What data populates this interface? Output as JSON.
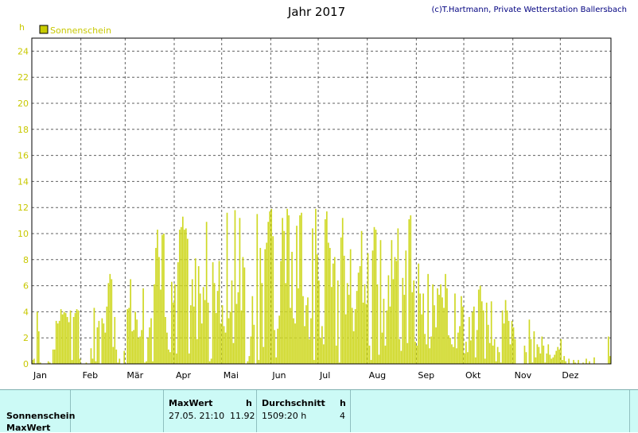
{
  "header": {
    "title": "Jahr 2017",
    "copyright": "(c)T.Hartmann, Private Wetterstation Ballersbach",
    "unit": "h"
  },
  "legend": {
    "label": "Sonnenschein",
    "color": "#c8cc00"
  },
  "chart_data": {
    "type": "bar",
    "title": "Jahr 2017",
    "ylabel": "h",
    "ylim": [
      0,
      25
    ],
    "yticks": [
      0,
      2,
      4,
      6,
      8,
      10,
      12,
      14,
      16,
      18,
      20,
      22,
      24
    ],
    "months": [
      "Jan",
      "Feb",
      "Mär",
      "Apr",
      "Mai",
      "Jun",
      "Jul",
      "Aug",
      "Sep",
      "Okt",
      "Nov",
      "Dez"
    ],
    "grid": true,
    "series": [
      {
        "name": "Sonnenschein",
        "color": "#cfd824",
        "values": [
          0.3,
          0.4,
          0,
          4.0,
          2.5,
          0.1,
          0,
          0,
          0,
          0,
          0.2,
          0.1,
          0,
          1.1,
          1.1,
          3.3,
          3.1,
          3.3,
          4.2,
          3.8,
          4.0,
          3.9,
          3.6,
          3.2,
          4.1,
          0.3,
          3.6,
          3.9,
          4.2,
          4.1,
          0.4,
          0,
          0,
          0,
          0.1,
          0,
          0,
          1.2,
          0.4,
          4.3,
          0.2,
          2.8,
          3.3,
          0,
          3.5,
          3.1,
          2.4,
          4.4,
          6.2,
          6.9,
          6.5,
          1.3,
          3.6,
          1.1,
          0.1,
          0.4,
          0,
          0,
          1.0,
          0,
          4.2,
          4.3,
          6.5,
          2.5,
          2.6,
          4.0,
          3.4,
          2.0,
          2.1,
          2.6,
          5.8,
          0.1,
          0.2,
          2.0,
          2.8,
          3.5,
          0.2,
          6.1,
          8.9,
          10.3,
          8.2,
          5.7,
          9.9,
          10.0,
          3.6,
          2.4,
          1.1,
          0.9,
          6.3,
          4.7,
          6.1,
          0.8,
          7.8,
          10.3,
          10.5,
          11.3,
          10.3,
          10.4,
          9.6,
          0.8,
          4.5,
          6.5,
          4.4,
          8.1,
          1.9,
          7.5,
          5.4,
          3.1,
          5.9,
          4.9,
          10.9,
          4.7,
          0.2,
          0.4,
          7.8,
          6.2,
          3.9,
          5.6,
          7.9,
          3.1,
          4.5,
          2.9,
          2.4,
          11.6,
          3.5,
          4.0,
          6.4,
          1.6,
          11.8,
          4.6,
          5.5,
          11.2,
          4.1,
          8.2,
          7.4,
          0,
          0.2,
          0.6,
          2.1,
          5.2,
          3.0,
          0,
          11.5,
          0.3,
          8.9,
          6.2,
          1.3,
          8.8,
          9.3,
          10.9,
          11.7,
          11.9,
          9.8,
          2.6,
          0.5,
          2.7,
          3.7,
          7.9,
          11.2,
          10.2,
          6.2,
          11.9,
          11.4,
          4.3,
          8.6,
          3.5,
          3.1,
          10.6,
          5.8,
          11.4,
          11.6,
          5.2,
          2.9,
          4.5,
          5.1,
          1.9,
          3.5,
          10.4,
          0.3,
          11.9,
          8.4,
          6.4,
          2.0,
          2.9,
          1.5,
          11.1,
          11.7,
          9.3,
          8.9,
          5.9,
          7.7,
          8.2,
          1.4,
          6.4,
          0.1,
          9.7,
          11.2,
          8.3,
          3.8,
          6.2,
          5.3,
          8.8,
          4.3,
          2.5,
          4.2,
          5.6,
          7.0,
          7.5,
          10.2,
          4.7,
          6.1,
          4.6,
          8.5,
          1.4,
          0.3,
          8.7,
          10.5,
          10.3,
          6.1,
          0.7,
          9.5,
          2.4,
          5.0,
          1.4,
          4.1,
          6.8,
          4.4,
          9.5,
          6.5,
          8.2,
          7.9,
          10.4,
          1.9,
          1.0,
          6.6,
          5.3,
          8.7,
          1.6,
          11.1,
          11.4,
          5.5,
          6.4,
          1.7,
          1.4,
          7.7,
          5.4,
          3.8,
          5.4,
          2.3,
          1.5,
          6.9,
          1.2,
          2.1,
          6.1,
          4.5,
          2.8,
          5.8,
          5.3,
          6.1,
          5.1,
          4.3,
          6.9,
          5.8,
          2.2,
          2.0,
          1.5,
          1.3,
          5.4,
          1.2,
          2.4,
          2.9,
          5.2,
          4.4,
          0.8,
          1.7,
          0.9,
          3.6,
          1.8,
          4.0,
          4.4,
          0.5,
          2.6,
          5.7,
          6.0,
          4.8,
          4.1,
          0.4,
          4.7,
          3.0,
          1.6,
          4.8,
          1.4,
          1.9,
          0.2,
          1.3,
          0.9,
          0.1,
          4.1,
          3.1,
          4.9,
          4.1,
          3.3,
          1.5,
          3.3,
          2.8,
          1.9,
          0,
          0,
          0,
          0,
          0,
          1.4,
          0.9,
          0,
          3.4,
          1.9,
          0.1,
          2.5,
          0.5,
          1.5,
          1.3,
          0.8,
          2.1,
          1.4,
          0.1,
          0.8,
          1.5,
          0.7,
          0.4,
          0.5,
          0.7,
          1.0,
          1.3,
          1.1,
          1.9,
          0.3,
          0.6,
          0.2,
          0,
          0.4,
          0,
          0,
          0.3,
          0.1,
          0,
          0.3,
          0,
          0,
          0.1,
          0,
          0.4,
          0,
          0.2,
          0,
          0,
          0.5,
          0,
          0,
          0,
          0,
          0,
          0,
          0,
          0,
          2.1,
          0.6
        ]
      }
    ]
  },
  "table": {
    "row_labels": [
      "Sonnenschein",
      "MaxWert"
    ],
    "max_header": "MaxWert",
    "max_unit": "h",
    "max_date": "27.05.  21:10",
    "max_value": "11.92",
    "avg_header": "Durchschnitt",
    "avg_unit": "h",
    "avg_value": "1509:20 h",
    "avg_num": "4"
  }
}
